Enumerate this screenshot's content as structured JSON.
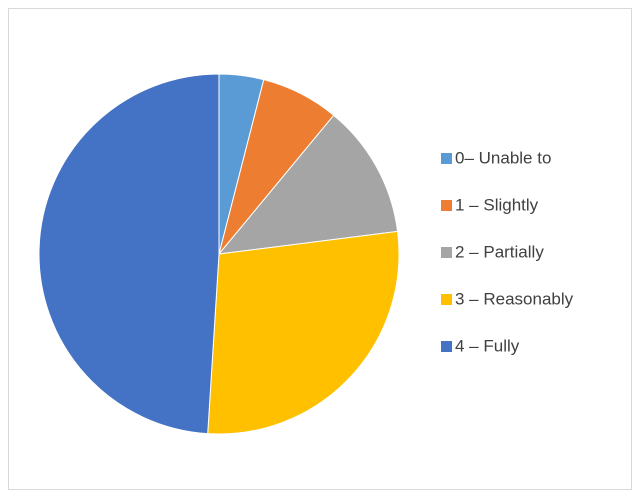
{
  "chart_data": {
    "type": "pie",
    "categories": [
      "0– Unable to",
      "1 – Slightly",
      "2 – Partially",
      "3 – Reasonably",
      "4 – Fully"
    ],
    "values": [
      4,
      7,
      12,
      28,
      49
    ],
    "colors": [
      "#5b9bd5",
      "#ed7d31",
      "#a5a5a5",
      "#ffc000",
      "#4472c4"
    ],
    "legend": "right"
  }
}
